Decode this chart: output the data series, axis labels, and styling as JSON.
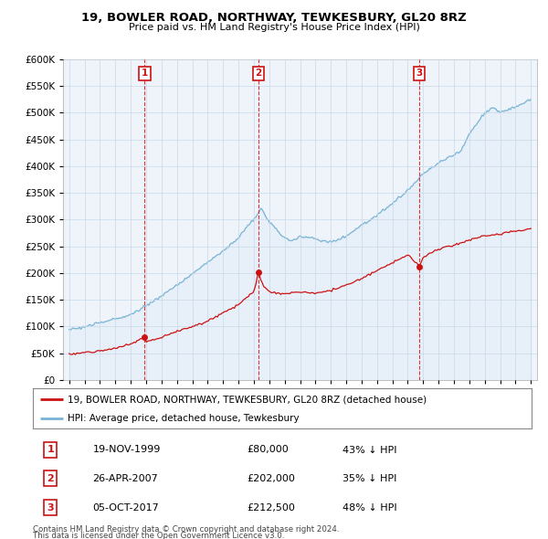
{
  "title": "19, BOWLER ROAD, NORTHWAY, TEWKESBURY, GL20 8RZ",
  "subtitle": "Price paid vs. HM Land Registry's House Price Index (HPI)",
  "legend_line1": "19, BOWLER ROAD, NORTHWAY, TEWKESBURY, GL20 8RZ (detached house)",
  "legend_line2": "HPI: Average price, detached house, Tewkesbury",
  "footer1": "Contains HM Land Registry data © Crown copyright and database right 2024.",
  "footer2": "This data is licensed under the Open Government Licence v3.0.",
  "transactions": [
    {
      "label": "1",
      "date": "19-NOV-1999",
      "price": 80000,
      "hpi_note": "43% ↓ HPI",
      "x": 1999.9
    },
    {
      "label": "2",
      "date": "26-APR-2007",
      "price": 202000,
      "hpi_note": "35% ↓ HPI",
      "x": 2007.3
    },
    {
      "label": "3",
      "date": "05-OCT-2017",
      "price": 212500,
      "hpi_note": "48% ↓ HPI",
      "x": 2017.75
    }
  ],
  "hpi_color": "#7ab3d4",
  "hpi_fill_color": "#daeaf5",
  "price_color": "#cc1111",
  "background_color": "#ffffff",
  "chart_bg_color": "#eef4fa",
  "grid_color": "#c8d8e8",
  "ylim": [
    0,
    600000
  ],
  "yticks": [
    0,
    50000,
    100000,
    150000,
    200000,
    250000,
    300000,
    350000,
    400000,
    450000,
    500000,
    550000,
    600000
  ],
  "xlim_start": 1994.6,
  "xlim_end": 2025.4,
  "hpi_anchors_x": [
    1995,
    1996,
    1997,
    1998,
    1999,
    2000,
    2001,
    2002,
    2003,
    2004,
    2005,
    2006,
    2007,
    2007.5,
    2008,
    2009,
    2009.5,
    2010,
    2011,
    2012,
    2013,
    2014,
    2015,
    2016,
    2017,
    2018,
    2019,
    2020,
    2020.5,
    2021,
    2022,
    2022.5,
    2023,
    2024,
    2025
  ],
  "hpi_anchors_y": [
    95000,
    100000,
    108000,
    115000,
    123000,
    140000,
    158000,
    178000,
    200000,
    220000,
    240000,
    265000,
    300000,
    320000,
    295000,
    265000,
    260000,
    268000,
    265000,
    258000,
    270000,
    290000,
    308000,
    330000,
    355000,
    385000,
    405000,
    420000,
    430000,
    460000,
    500000,
    510000,
    500000,
    510000,
    525000
  ],
  "pp_anchors_x": [
    1995,
    1996,
    1997,
    1998,
    1999,
    1999.9,
    2000,
    2001,
    2002,
    2003,
    2004,
    2005,
    2006,
    2007,
    2007.3,
    2007.6,
    2008,
    2009,
    2010,
    2011,
    2012,
    2013,
    2014,
    2015,
    2016,
    2017,
    2017.75,
    2018,
    2019,
    2020,
    2021,
    2022,
    2023,
    2024,
    2025
  ],
  "pp_anchors_y": [
    50000,
    52000,
    55000,
    60000,
    68000,
    80000,
    72000,
    80000,
    90000,
    100000,
    110000,
    125000,
    140000,
    165000,
    202000,
    175000,
    165000,
    160000,
    165000,
    162000,
    168000,
    178000,
    190000,
    205000,
    220000,
    235000,
    212500,
    230000,
    245000,
    252000,
    262000,
    268000,
    272000,
    278000,
    282000
  ]
}
